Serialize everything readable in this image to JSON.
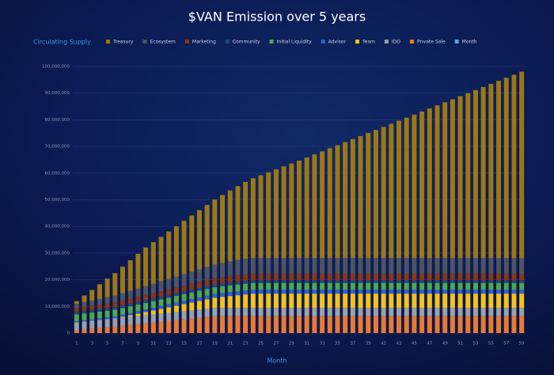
{
  "chart_data": {
    "type": "stacked_bar",
    "title": "$VAN Emission over 5 years",
    "y_label": "Circulating Supply",
    "x_label": "Month",
    "categories": [
      1,
      null,
      3,
      null,
      5,
      null,
      7,
      null,
      9,
      null,
      11,
      null,
      13,
      null,
      15,
      null,
      17,
      null,
      19,
      null,
      21,
      null,
      23,
      null,
      25,
      null,
      27,
      null,
      29,
      null,
      31,
      null,
      33,
      null,
      35,
      null,
      37,
      null,
      39,
      null,
      41,
      null,
      43,
      null,
      45,
      null,
      47,
      null,
      49,
      null,
      51,
      null,
      53,
      null,
      55,
      null,
      57,
      null,
      59
    ],
    "ylim": [
      0,
      100000000
    ],
    "yticks": [
      0,
      {
        "value": 10000000,
        "label": "10,000,000"
      },
      {
        "value": 20000000,
        "label": "20,000,000"
      },
      {
        "value": 30000000,
        "label": "30,000,000"
      },
      {
        "value": 40000000,
        "label": "40,000,000"
      },
      {
        "value": 50000000,
        "label": "50,000,000"
      },
      {
        "value": 60000000,
        "label": "60,000,000"
      },
      {
        "value": 70000000,
        "label": "70,000,000"
      },
      {
        "value": 80000000,
        "label": "80,000,000"
      },
      {
        "value": 90000000,
        "label": "90,000,000"
      },
      {
        "value": 100000000,
        "label": "100,000,000"
      }
    ],
    "grid": true,
    "legend": "top",
    "series": [
      {
        "name": "Treasury",
        "color": "#9c7716",
        "values": [
          1000000,
          2500000,
          4000000,
          5500000,
          7000000,
          8500000,
          10000000,
          11500000,
          13000000,
          14500000,
          15600000,
          16700000,
          17800000,
          18900000,
          20000000,
          21100000,
          22200000,
          23300000,
          24400000,
          25500000,
          26600000,
          27700000,
          28800000,
          29900000,
          31000000,
          32100000,
          33200000,
          34300000,
          35400000,
          36500000,
          37650000,
          38800000,
          39950000,
          41100000,
          42250000,
          43400000,
          44550000,
          45700000,
          46850000,
          48000000,
          49150000,
          50300000,
          51450000,
          52600000,
          53750000,
          54900000,
          56050000,
          57200000,
          58350000,
          59500000,
          60650000,
          61800000,
          62950000,
          64100000,
          65250000,
          66400000,
          67550000,
          68700000,
          69850000
        ]
      },
      {
        "name": "Ecosystem",
        "color": "#4d5363",
        "values": [
          1500000,
          1700000,
          1900000,
          2100000,
          2300000,
          2500000,
          2700000,
          2900000,
          3100000,
          3300000,
          3500000,
          3700000,
          3900000,
          4100000,
          4300000,
          4500000,
          4700000,
          4900000,
          5100000,
          5300000,
          5500000,
          5700000,
          5900000,
          5900000,
          5900000,
          5900000,
          5900000,
          5900000,
          5900000,
          5900000,
          5900000,
          5900000,
          5900000,
          5900000,
          5900000,
          5900000,
          5900000,
          5900000,
          5900000,
          5900000,
          5900000,
          5900000,
          5900000,
          5900000,
          5900000,
          5900000,
          5900000,
          5900000,
          5900000,
          5900000,
          5900000,
          5900000,
          5900000,
          5900000,
          5900000,
          5900000,
          5900000,
          5900000,
          5900000
        ]
      },
      {
        "name": "Marketing",
        "color": "#8a3518",
        "values": [
          1500000,
          1550000,
          1600000,
          1650000,
          1700000,
          1750000,
          1800000,
          1850000,
          1900000,
          1950000,
          2000000,
          2050000,
          2100000,
          2150000,
          2200000,
          2250000,
          2300000,
          2350000,
          2400000,
          2450000,
          2500000,
          2500000,
          2500000,
          2500000,
          2500000,
          2500000,
          2500000,
          2500000,
          2500000,
          2500000,
          2500000,
          2500000,
          2500000,
          2500000,
          2500000,
          2500000,
          2500000,
          2500000,
          2500000,
          2500000,
          2500000,
          2500000,
          2500000,
          2500000,
          2500000,
          2500000,
          2500000,
          2500000,
          2500000,
          2500000,
          2500000,
          2500000,
          2500000,
          2500000,
          2500000,
          2500000,
          2500000,
          2500000,
          2500000
        ]
      },
      {
        "name": "Community",
        "color": "#1d4b78",
        "values": [
          1000000,
          1000000,
          1000000,
          1000000,
          1000000,
          1000000,
          1000000,
          1000000,
          1000000,
          1000000,
          1000000,
          1000000,
          1000000,
          1000000,
          1000000,
          1000000,
          1000000,
          1000000,
          1000000,
          1000000,
          1000000,
          1000000,
          1000000,
          1000000,
          1000000,
          1000000,
          1000000,
          1000000,
          1000000,
          1000000,
          1000000,
          1000000,
          1000000,
          1000000,
          1000000,
          1000000,
          1000000,
          1000000,
          1000000,
          1000000,
          1000000,
          1000000,
          1000000,
          1000000,
          1000000,
          1000000,
          1000000,
          1000000,
          1000000,
          1000000,
          1000000,
          1000000,
          1000000,
          1000000,
          1000000,
          1000000,
          1000000,
          1000000,
          1000000
        ]
      },
      {
        "name": "Initial Liquidity",
        "color": "#4fa84a",
        "values": [
          2500000,
          2500000,
          2500000,
          2500000,
          2500000,
          2500000,
          2500000,
          2500000,
          2500000,
          2500000,
          2500000,
          2500000,
          2500000,
          2500000,
          2500000,
          2500000,
          2500000,
          2500000,
          2500000,
          2500000,
          2500000,
          2500000,
          2500000,
          2500000,
          2500000,
          2500000,
          2500000,
          2500000,
          2500000,
          2500000,
          2500000,
          2500000,
          2500000,
          2500000,
          2500000,
          2500000,
          2500000,
          2500000,
          2500000,
          2500000,
          2500000,
          2500000,
          2500000,
          2500000,
          2500000,
          2500000,
          2500000,
          2500000,
          2500000,
          2500000,
          2500000,
          2500000,
          2500000,
          2500000,
          2500000,
          2500000,
          2500000,
          2500000,
          2500000
        ]
      },
      {
        "name": "Advisor",
        "color": "#2d63c8",
        "values": [
          500000,
          550000,
          600000,
          650000,
          700000,
          750000,
          800000,
          850000,
          900000,
          950000,
          1000000,
          1050000,
          1100000,
          1150000,
          1200000,
          1250000,
          1300000,
          1350000,
          1400000,
          1450000,
          1500000,
          1500000,
          1500000,
          1500000,
          1500000,
          1500000,
          1500000,
          1500000,
          1500000,
          1500000,
          1500000,
          1500000,
          1500000,
          1500000,
          1500000,
          1500000,
          1500000,
          1500000,
          1500000,
          1500000,
          1500000,
          1500000,
          1500000,
          1500000,
          1500000,
          1500000,
          1500000,
          1500000,
          1500000,
          1500000,
          1500000,
          1500000,
          1500000,
          1500000,
          1500000,
          1500000,
          1500000,
          1500000,
          1500000
        ]
      },
      {
        "name": "Team",
        "color": "#f4c21b",
        "values": [
          0,
          0,
          0,
          0,
          0,
          0,
          300000,
          600000,
          900000,
          1200000,
          1500000,
          1800000,
          2100000,
          2400000,
          2700000,
          3000000,
          3300000,
          3600000,
          3900000,
          4200000,
          4500000,
          4800000,
          5100000,
          5400000,
          5400000,
          5400000,
          5400000,
          5400000,
          5400000,
          5400000,
          5400000,
          5400000,
          5400000,
          5400000,
          5400000,
          5400000,
          5400000,
          5400000,
          5400000,
          5400000,
          5400000,
          5400000,
          5400000,
          5400000,
          5400000,
          5400000,
          5400000,
          5400000,
          5400000,
          5400000,
          5400000,
          5400000,
          5400000,
          5400000,
          5400000,
          5400000,
          5400000,
          5400000,
          5400000
        ]
      },
      {
        "name": "IDO",
        "color": "#9aa0a8",
        "values": [
          3000000,
          3000000,
          3000000,
          3000000,
          3000000,
          3000000,
          3000000,
          3000000,
          3000000,
          3000000,
          3000000,
          3000000,
          3000000,
          3000000,
          3000000,
          3000000,
          3000000,
          3000000,
          3000000,
          3000000,
          3000000,
          3000000,
          3000000,
          3000000,
          3000000,
          3000000,
          3000000,
          3000000,
          3000000,
          3000000,
          3000000,
          3000000,
          3000000,
          3000000,
          3000000,
          3000000,
          3000000,
          3000000,
          3000000,
          3000000,
          3000000,
          3000000,
          3000000,
          3000000,
          3000000,
          3000000,
          3000000,
          3000000,
          3000000,
          3000000,
          3000000,
          3000000,
          3000000,
          3000000,
          3000000,
          3000000,
          3000000,
          3000000,
          3000000
        ]
      },
      {
        "name": "Private Sale",
        "color": "#e77a34",
        "values": [
          1000000,
          1300000,
          1600000,
          1900000,
          2200000,
          2500000,
          2800000,
          3100000,
          3400000,
          3700000,
          4000000,
          4300000,
          4600000,
          4900000,
          5200000,
          5500000,
          5800000,
          6100000,
          6400000,
          6400000,
          6400000,
          6400000,
          6400000,
          6400000,
          6400000,
          6400000,
          6400000,
          6400000,
          6400000,
          6400000,
          6400000,
          6400000,
          6400000,
          6400000,
          6400000,
          6400000,
          6400000,
          6400000,
          6400000,
          6400000,
          6400000,
          6400000,
          6400000,
          6400000,
          6400000,
          6400000,
          6400000,
          6400000,
          6400000,
          6400000,
          6400000,
          6400000,
          6400000,
          6400000,
          6400000,
          6400000,
          6400000,
          6400000,
          6400000
        ]
      },
      {
        "name": "Month",
        "color": "#5aa2e4",
        "values": [
          0,
          0,
          0,
          0,
          0,
          0,
          0,
          0,
          0,
          0,
          0,
          0,
          0,
          0,
          0,
          0,
          0,
          0,
          0,
          0,
          0,
          0,
          0,
          0,
          0,
          0,
          0,
          0,
          0,
          0,
          0,
          0,
          0,
          0,
          0,
          0,
          0,
          0,
          0,
          0,
          0,
          0,
          0,
          0,
          0,
          0,
          0,
          0,
          0,
          0,
          0,
          0,
          0,
          0,
          0,
          0,
          0,
          0,
          0
        ]
      }
    ]
  }
}
